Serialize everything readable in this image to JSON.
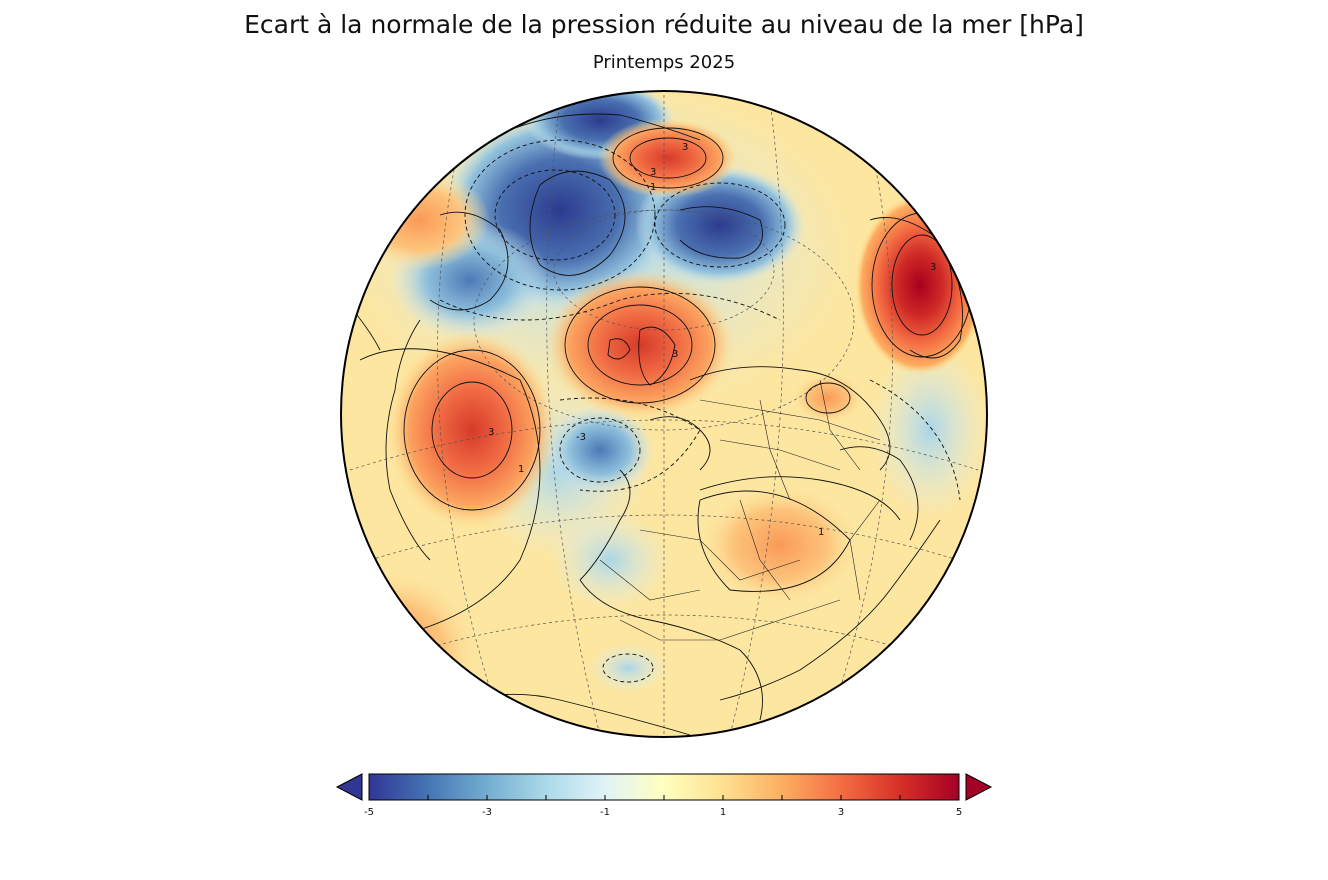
{
  "header": {
    "title": "Ecart à la normale de la pression réduite au niveau de la mer [hPa]",
    "subtitle": "Printemps 2025"
  },
  "colorbar": {
    "ticks": [
      "-5",
      "-3",
      "-1",
      "1",
      "3",
      "5"
    ],
    "min": -5,
    "max": 5,
    "colors": [
      "#313695",
      "#4575b4",
      "#74add1",
      "#abd9e9",
      "#e0f3f8",
      "#ffffbf",
      "#fee090",
      "#fdae61",
      "#f46d43",
      "#d73027",
      "#a50026"
    ],
    "extend": "both"
  },
  "map": {
    "projection": "orthographic",
    "contour_labels": [
      "3",
      "3",
      "3",
      "3",
      "3",
      "1",
      "1",
      "1",
      "-3"
    ]
  }
}
